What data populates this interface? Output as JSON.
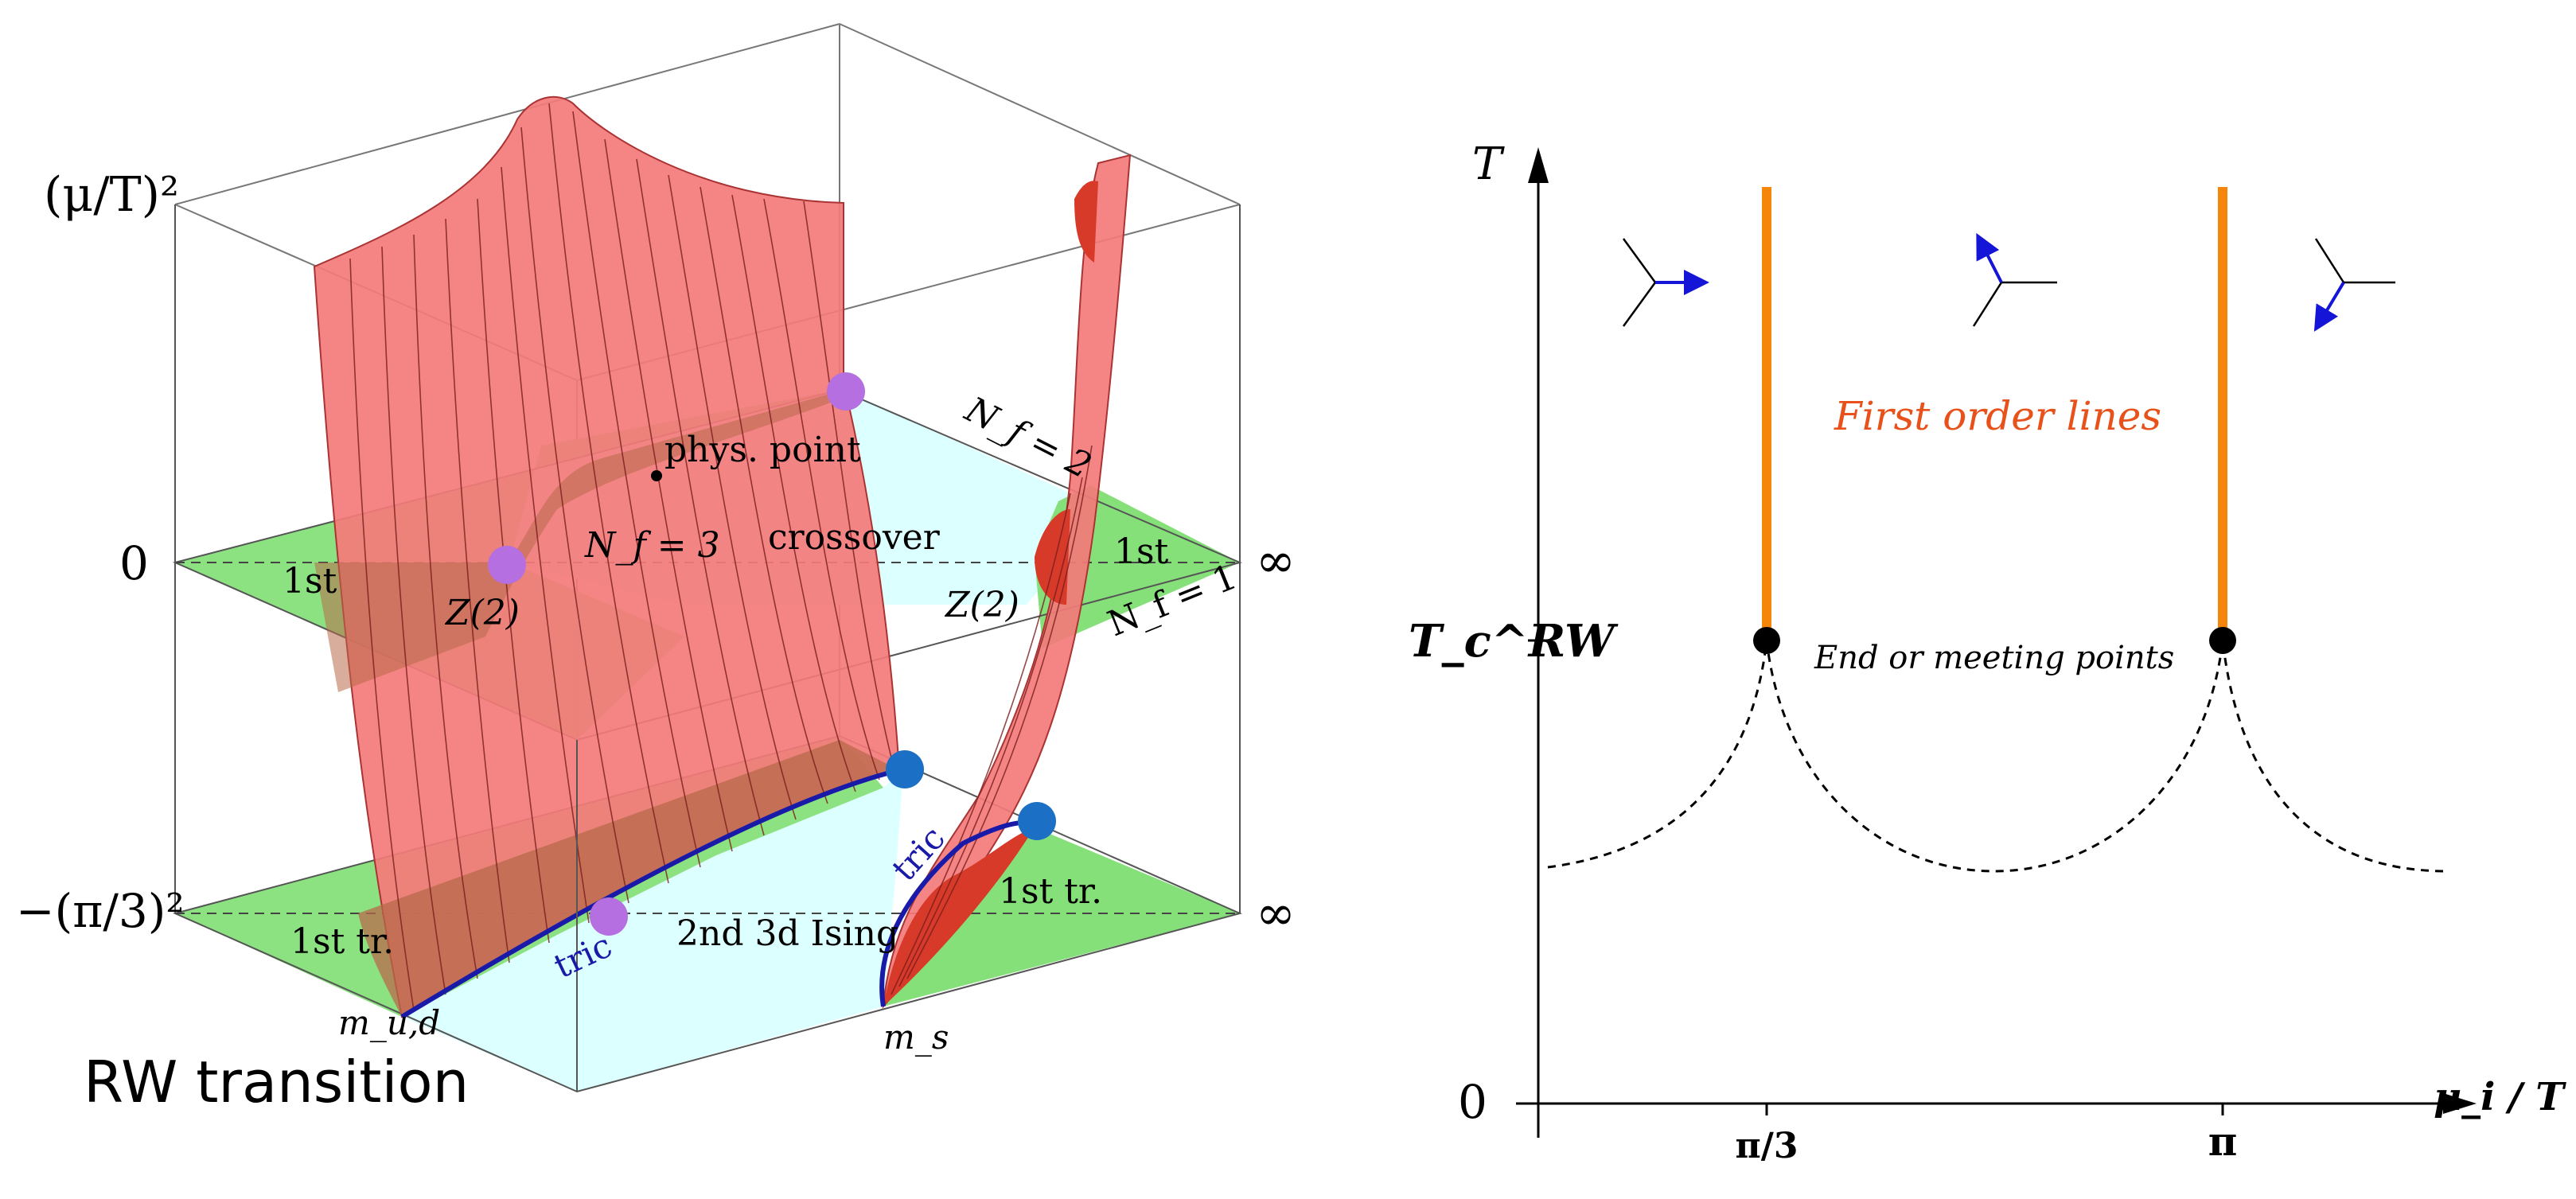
{
  "left_panel": {
    "caption": "RW transition",
    "axis": {
      "top_label": "(μ/T)²",
      "zero_label": "0",
      "bottom_label": "−(π/3)²",
      "infinity_upper": "∞",
      "infinity_lower": "∞",
      "mud_label": "m_u,d",
      "ms_label": "m_s"
    },
    "upper_plane": {
      "first_left": "1st",
      "first_right": "1st",
      "z2_left": "Z(2)",
      "z2_right": "Z(2)",
      "nf3": "N_f = 3",
      "crossover": "crossover",
      "phys_point": "phys. point",
      "nf2": "N_f = 2",
      "nf1": "N_f = 1"
    },
    "lower_plane": {
      "first_tr_left": "1st tr.",
      "first_tr_right": "1st tr.",
      "ising": "2nd 3d Ising",
      "tric_left": "tric",
      "tric_right": "tric"
    },
    "colors": {
      "surface": "#f47a7a",
      "green_plane": "#86e07a",
      "cyan_region": "#dcffff",
      "magenta_point": "#b56fe0",
      "blue_point": "#1b6fc4",
      "tric_line": "#1a1aa8",
      "dark_red": "#d83a2a"
    }
  },
  "right_panel": {
    "y_label": "T",
    "x_label": "μ_i / T",
    "tc_label": "T_c^RW",
    "origin_label": "0",
    "x_ticks": [
      "π/3",
      "π"
    ],
    "first_order_label": "First order lines",
    "end_points_label": "End or meeting points",
    "colors": {
      "first_order": "#f5850b",
      "arrow": "#1515d8"
    }
  }
}
